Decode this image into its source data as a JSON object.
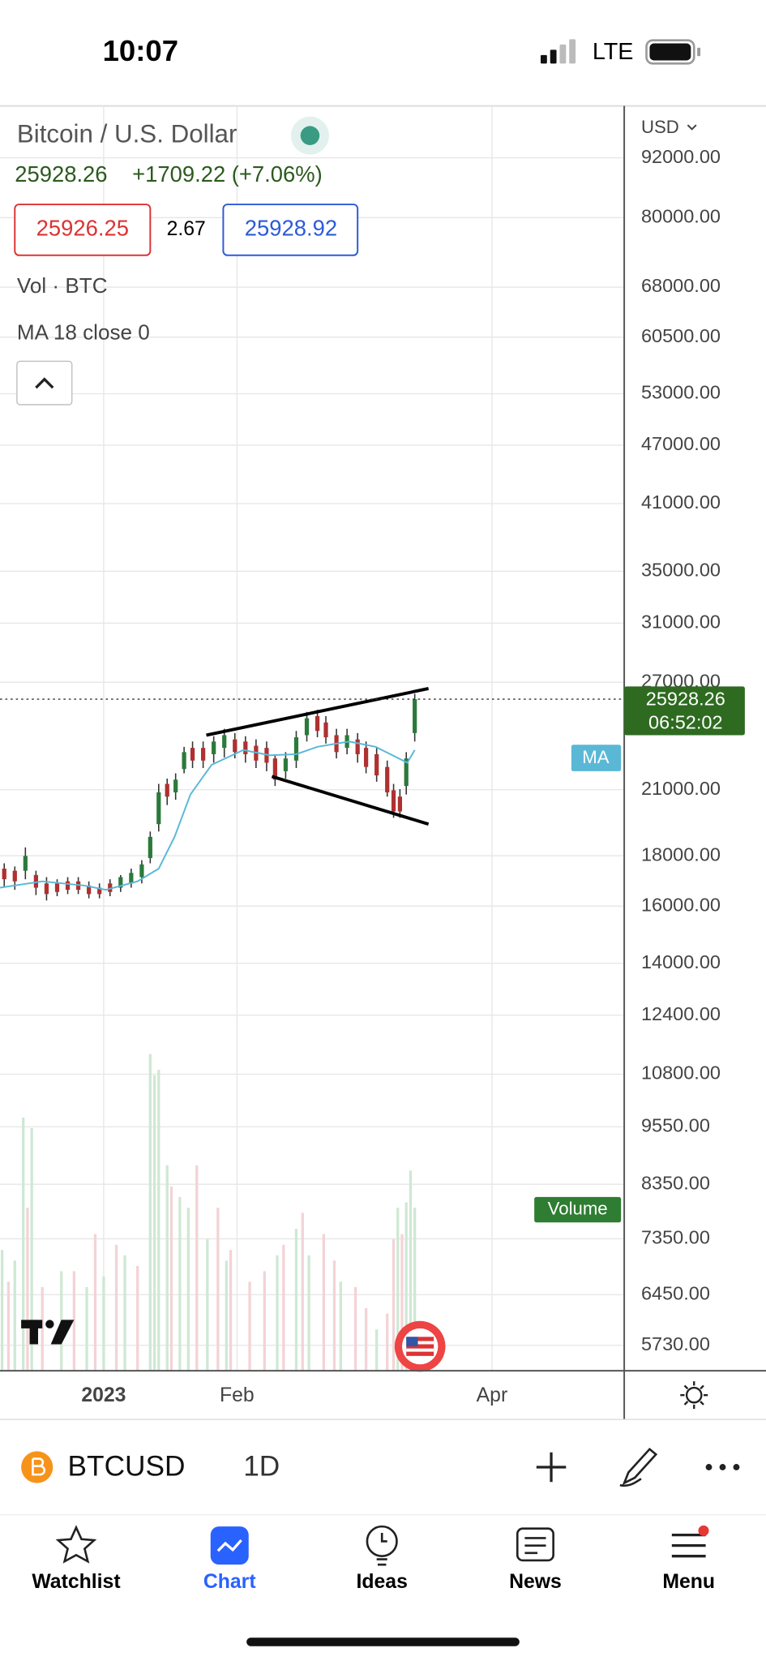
{
  "status_bar": {
    "time": "10:07",
    "network": "LTE"
  },
  "symbol_header": {
    "title": "Bitcoin / U.S. Dollar",
    "last_price": "25928.26",
    "change": "+1709.22 (+7.06%)",
    "bid": "25926.25",
    "spread": "2.67",
    "ask": "25928.92"
  },
  "indicators": [
    "Vol · BTC",
    "MA 18 close 0"
  ],
  "price_axis": {
    "currency": "USD",
    "ticks": [
      {
        "value": 92000,
        "label": "92000.00"
      },
      {
        "value": 80000,
        "label": "80000.00"
      },
      {
        "value": 68000,
        "label": "68000.00"
      },
      {
        "value": 60500,
        "label": "60500.00"
      },
      {
        "value": 53000,
        "label": "53000.00"
      },
      {
        "value": 47000,
        "label": "47000.00"
      },
      {
        "value": 41000,
        "label": "41000.00"
      },
      {
        "value": 35000,
        "label": "35000.00"
      },
      {
        "value": 31000,
        "label": "31000.00"
      },
      {
        "value": 27000,
        "label": "27000.00"
      },
      {
        "value": 21000,
        "label": "21000.00"
      },
      {
        "value": 18000,
        "label": "18000.00"
      },
      {
        "value": 16000,
        "label": "16000.00"
      },
      {
        "value": 14000,
        "label": "14000.00"
      },
      {
        "value": 12400,
        "label": "12400.00"
      },
      {
        "value": 10800,
        "label": "10800.00"
      },
      {
        "value": 9550,
        "label": "9550.00"
      },
      {
        "value": 8350,
        "label": "8350.00"
      },
      {
        "value": 7350,
        "label": "7350.00"
      },
      {
        "value": 6450,
        "label": "6450.00"
      },
      {
        "value": 5730,
        "label": "5730.00"
      }
    ]
  },
  "price_badge": {
    "price": "25928.26",
    "countdown": "06:52:02"
  },
  "chart_labels": {
    "ma": "MA",
    "volume": "Volume"
  },
  "time_axis": [
    "2023",
    "Feb",
    "Apr"
  ],
  "toolbar": {
    "symbol": "BTCUSD",
    "interval": "1D"
  },
  "tab_bar": [
    "Watchlist",
    "Chart",
    "Ideas",
    "News",
    "Menu"
  ]
}
